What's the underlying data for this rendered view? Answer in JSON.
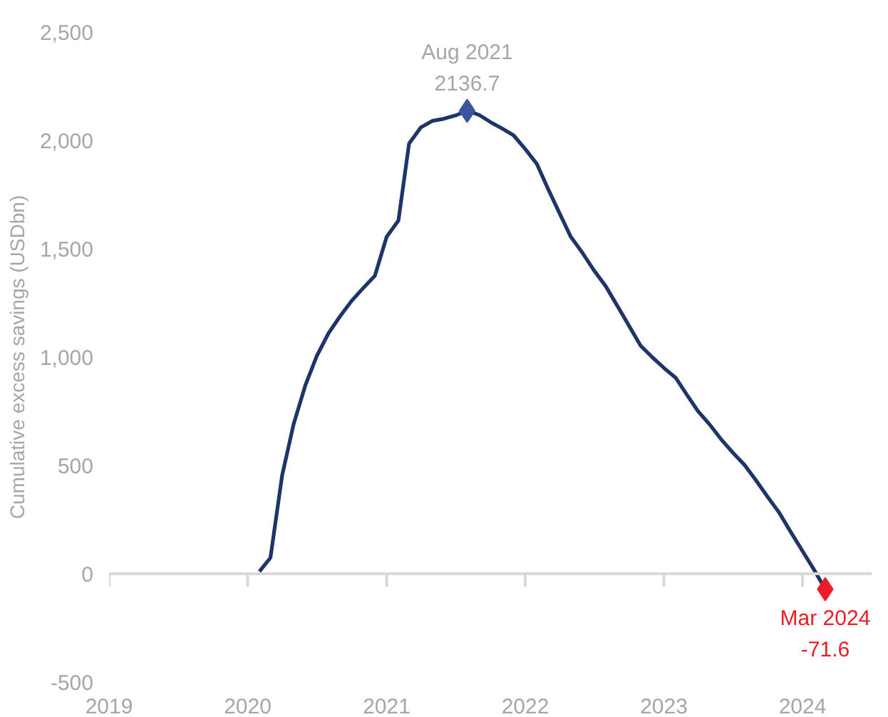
{
  "chart_data": {
    "type": "line",
    "ylabel": "Cumulative excess savings (USDbn)",
    "x": [
      "2020-02",
      "2020-03",
      "2020-04",
      "2020-05",
      "2020-06",
      "2020-07",
      "2020-08",
      "2020-09",
      "2020-10",
      "2020-11",
      "2020-12",
      "2021-01",
      "2021-02",
      "2021-03",
      "2021-04",
      "2021-05",
      "2021-06",
      "2021-07",
      "2021-08",
      "2021-09",
      "2021-10",
      "2021-11",
      "2021-12",
      "2022-01",
      "2022-02",
      "2022-03",
      "2022-04",
      "2022-05",
      "2022-06",
      "2022-07",
      "2022-08",
      "2022-09",
      "2022-10",
      "2022-11",
      "2022-12",
      "2023-01",
      "2023-02",
      "2023-03",
      "2023-04",
      "2023-05",
      "2023-06",
      "2023-07",
      "2023-08",
      "2023-09",
      "2023-10",
      "2023-11",
      "2023-12",
      "2024-01",
      "2024-02",
      "2024-03"
    ],
    "series": [
      {
        "color": "#1f3468",
        "marker": "none",
        "values": [
          10,
          74,
          456,
          690,
          870,
          1005,
          1110,
          1190,
          1260,
          1320,
          1375,
          1555,
          1630,
          1985,
          2060,
          2090,
          2100,
          2115,
          2136.7,
          2118,
          2085,
          2055,
          2024,
          1960,
          1890,
          1780,
          1665,
          1555,
          1480,
          1400,
          1327,
          1235,
          1145,
          1052,
          1000,
          950,
          905,
          830,
          750,
          690,
          620,
          560,
          503,
          430,
          355,
          281,
          193,
          105,
          17,
          -71.6
        ]
      },
      {
        "type": "scatter",
        "color": "#3b56a0",
        "marker": "diamond",
        "x": [
          "2021-08"
        ],
        "values": [
          2136.7
        ]
      },
      {
        "type": "scatter",
        "color": "#ee1c25",
        "marker": "diamond",
        "x": [
          "2024-03"
        ],
        "values": [
          -71.6
        ]
      }
    ],
    "annotations": [
      {
        "text": "Aug 2021\n2136.7",
        "x": "2021-08",
        "y": 2136.7
      },
      {
        "text": "Mar 2024\n-71.6",
        "x": "2024-03",
        "y": -71.6
      }
    ],
    "xlim": [
      "2019-01",
      "2024-07"
    ],
    "xticks": [
      "2019",
      "2020",
      "2021",
      "2022",
      "2023",
      "2024"
    ],
    "ylim": [
      -500,
      2500
    ],
    "yticks": [
      {
        "value": -500,
        "label": "-500"
      },
      0,
      500,
      {
        "value": 1000,
        "label": "1,000"
      },
      {
        "value": 1500,
        "label": "1,500"
      },
      {
        "value": 2000,
        "label": "2,000"
      },
      {
        "value": 2500,
        "label": "2,500"
      }
    ],
    "ref_lines": [
      {
        "axis": "y",
        "value": 0,
        "color": "#d9d9d9"
      }
    ],
    "grid": false
  }
}
